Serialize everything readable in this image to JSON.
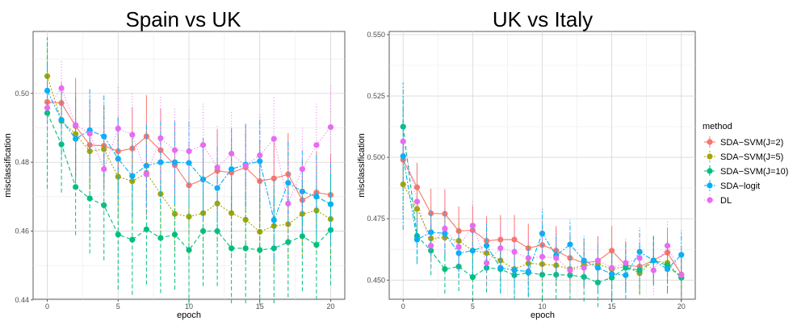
{
  "colors": {
    "SDA-SVM(J=2)": "#F8766D",
    "SDA-SVM(J=5)": "#A3A500",
    "SDA-SVM(J=10)": "#00BF7D",
    "SDA-logit": "#00B0F6",
    "DL": "#E76BF3"
  },
  "legend": {
    "title": "method",
    "items": [
      "SDA−SVM(J=2)",
      "SDA−SVM(J=5)",
      "SDA−SVM(J=10)",
      "SDA−logit",
      "DL"
    ]
  },
  "chart_data": [
    {
      "type": "line",
      "title": "Spain vs UK",
      "xlabel": "epoch",
      "ylabel": "misclassification",
      "xlim": [
        -1,
        21
      ],
      "ylim": [
        0.4402,
        0.518
      ],
      "xticks": [
        0,
        5,
        10,
        15,
        20
      ],
      "xtick_labels": [
        "0",
        "5",
        "10",
        "15",
        "20"
      ],
      "yticks": [
        0.44,
        0.46,
        0.48,
        0.5
      ],
      "ytick_labels": [
        "0.44",
        "0.46",
        "0.48",
        "0.50"
      ],
      "x": [
        0,
        1,
        2,
        3,
        4,
        5,
        6,
        7,
        8,
        9,
        10,
        11,
        12,
        13,
        14,
        15,
        16,
        17,
        18,
        19,
        20
      ],
      "series": [
        {
          "name": "SDA-SVM(J=2)",
          "values": [
            0.4975,
            0.4972,
            0.4905,
            0.485,
            0.4848,
            0.4832,
            0.484,
            0.4875,
            0.4835,
            0.4792,
            0.4733,
            0.475,
            0.4775,
            0.477,
            0.4785,
            0.4745,
            0.4753,
            0.4765,
            0.469,
            0.4712,
            0.4705
          ],
          "err": [
            0.006,
            0.006,
            0.014,
            0.013,
            0.012,
            0.01,
            0.012,
            0.012,
            0.012,
            0.012,
            0.012,
            0.012,
            0.012,
            0.012,
            0.012,
            0.012,
            0.012,
            0.012,
            0.012,
            0.012,
            0.012
          ]
        },
        {
          "name": "SDA-SVM(J=5)",
          "values": [
            0.505,
            0.492,
            0.4882,
            0.4832,
            0.4838,
            0.4758,
            0.4745,
            0.4768,
            0.4708,
            0.465,
            0.4642,
            0.4652,
            0.468,
            0.4652,
            0.4633,
            0.4598,
            0.4615,
            0.462,
            0.465,
            0.466,
            0.4635
          ],
          "err": [
            0.01,
            0.01,
            0.012,
            0.012,
            0.012,
            0.012,
            0.012,
            0.012,
            0.012,
            0.012,
            0.012,
            0.012,
            0.012,
            0.012,
            0.012,
            0.012,
            0.012,
            0.012,
            0.012,
            0.012,
            0.012
          ]
        },
        {
          "name": "SDA-SVM(J=10)",
          "values": [
            0.4943,
            0.4852,
            0.4728,
            0.4695,
            0.4675,
            0.459,
            0.4575,
            0.4605,
            0.458,
            0.459,
            0.4545,
            0.46,
            0.46,
            0.455,
            0.455,
            0.4545,
            0.455,
            0.4568,
            0.4585,
            0.456,
            0.4603
          ],
          "err": [
            0.022,
            0.014,
            0.014,
            0.016,
            0.016,
            0.016,
            0.016,
            0.016,
            0.016,
            0.016,
            0.016,
            0.016,
            0.016,
            0.016,
            0.016,
            0.016,
            0.016,
            0.016,
            0.016,
            0.016,
            0.016
          ]
        },
        {
          "name": "SDA-logit",
          "values": [
            0.5008,
            0.4923,
            0.4868,
            0.4893,
            0.4875,
            0.481,
            0.476,
            0.479,
            0.48,
            0.48,
            0.4798,
            0.475,
            0.4725,
            0.478,
            0.4793,
            0.4803,
            0.4632,
            0.474,
            0.4715,
            0.47,
            0.4678
          ],
          "err": [
            0.008,
            0.01,
            0.012,
            0.012,
            0.012,
            0.012,
            0.012,
            0.012,
            0.012,
            0.012,
            0.012,
            0.012,
            0.012,
            0.012,
            0.012,
            0.012,
            0.012,
            0.012,
            0.012,
            0.012,
            0.012
          ]
        },
        {
          "name": "DL",
          "values": [
            0.4958,
            0.5015,
            0.4908,
            0.4883,
            0.478,
            0.4898,
            0.488,
            0.4765,
            0.487,
            0.4835,
            0.4832,
            0.485,
            0.4785,
            0.4825,
            0.479,
            0.482,
            0.4868,
            0.468,
            0.478,
            0.485,
            0.4902
          ],
          "err": [
            0.008,
            0.008,
            0.012,
            0.012,
            0.012,
            0.012,
            0.012,
            0.012,
            0.012,
            0.012,
            0.012,
            0.012,
            0.012,
            0.012,
            0.012,
            0.012,
            0.012,
            0.012,
            0.012,
            0.012,
            0.012
          ]
        }
      ]
    },
    {
      "type": "line",
      "title": "UK vs Italy",
      "xlabel": "epoch",
      "ylabel": "misclassification",
      "xlim": [
        -1,
        21
      ],
      "ylim": [
        0.4422,
        0.5513
      ],
      "xticks": [
        0,
        5,
        10,
        15,
        20
      ],
      "xtick_labels": [
        "0",
        "5",
        "10",
        "15",
        "20"
      ],
      "yticks": [
        0.45,
        0.475,
        0.5,
        0.525,
        0.55
      ],
      "ytick_labels": [
        "0.450",
        "0.475",
        "0.500",
        "0.525",
        "0.550"
      ],
      "x": [
        0,
        1,
        2,
        3,
        4,
        5,
        6,
        7,
        8,
        9,
        10,
        11,
        12,
        13,
        14,
        15,
        16,
        17,
        18,
        19,
        20
      ],
      "series": [
        {
          "name": "SDA-SVM(J=2)",
          "values": [
            0.499,
            0.4878,
            0.4772,
            0.477,
            0.47,
            0.4703,
            0.466,
            0.4665,
            0.4665,
            0.463,
            0.4643,
            0.462,
            0.459,
            0.457,
            0.4578,
            0.462,
            0.456,
            0.4555,
            0.458,
            0.4612,
            0.4523
          ],
          "err": [
            0.008,
            0.01,
            0.01,
            0.01,
            0.01,
            0.01,
            0.01,
            0.01,
            0.01,
            0.01,
            0.01,
            0.01,
            0.01,
            0.01,
            0.01,
            0.01,
            0.01,
            0.01,
            0.01,
            0.01,
            0.01
          ]
        },
        {
          "name": "SDA-SVM(J=5)",
          "values": [
            0.489,
            0.479,
            0.467,
            0.4673,
            0.466,
            0.462,
            0.461,
            0.458,
            0.4545,
            0.4568,
            0.4565,
            0.456,
            0.4545,
            0.456,
            0.4565,
            0.4545,
            0.4555,
            0.4528,
            0.458,
            0.457,
            0.451
          ],
          "err": [
            0.012,
            0.01,
            0.008,
            0.008,
            0.008,
            0.008,
            0.008,
            0.008,
            0.008,
            0.008,
            0.008,
            0.008,
            0.008,
            0.008,
            0.008,
            0.008,
            0.008,
            0.008,
            0.008,
            0.008,
            0.008
          ]
        },
        {
          "name": "SDA-SVM(J=10)",
          "values": [
            0.5125,
            0.468,
            0.462,
            0.4545,
            0.4555,
            0.4512,
            0.455,
            0.4545,
            0.452,
            0.453,
            0.4522,
            0.4522,
            0.452,
            0.4513,
            0.449,
            0.451,
            0.455,
            0.454,
            0.458,
            0.456,
            0.451
          ],
          "err": [
            0.012,
            0.01,
            0.01,
            0.01,
            0.01,
            0.01,
            0.01,
            0.01,
            0.01,
            0.01,
            0.01,
            0.01,
            0.01,
            0.01,
            0.01,
            0.01,
            0.01,
            0.01,
            0.01,
            0.01,
            0.01
          ]
        },
        {
          "name": "SDA-logit",
          "values": [
            0.5005,
            0.4665,
            0.4695,
            0.469,
            0.461,
            0.462,
            0.464,
            0.455,
            0.454,
            0.4535,
            0.469,
            0.46,
            0.4645,
            0.458,
            0.455,
            0.4525,
            0.452,
            0.4615,
            0.458,
            0.4545,
            0.4603
          ],
          "err": [
            0.03,
            0.01,
            0.01,
            0.01,
            0.01,
            0.01,
            0.01,
            0.01,
            0.01,
            0.01,
            0.01,
            0.01,
            0.01,
            0.01,
            0.01,
            0.01,
            0.01,
            0.01,
            0.01,
            0.01,
            0.01
          ]
        },
        {
          "name": "DL",
          "values": [
            0.5065,
            0.482,
            0.464,
            0.471,
            0.4635,
            0.4722,
            0.457,
            0.463,
            0.4615,
            0.459,
            0.4595,
            0.459,
            0.454,
            0.455,
            0.458,
            0.455,
            0.457,
            0.459,
            0.454,
            0.464,
            0.452
          ],
          "err": [
            0.008,
            0.01,
            0.01,
            0.01,
            0.01,
            0.01,
            0.01,
            0.01,
            0.01,
            0.01,
            0.01,
            0.01,
            0.01,
            0.01,
            0.01,
            0.01,
            0.01,
            0.01,
            0.01,
            0.01,
            0.01
          ]
        }
      ]
    }
  ]
}
